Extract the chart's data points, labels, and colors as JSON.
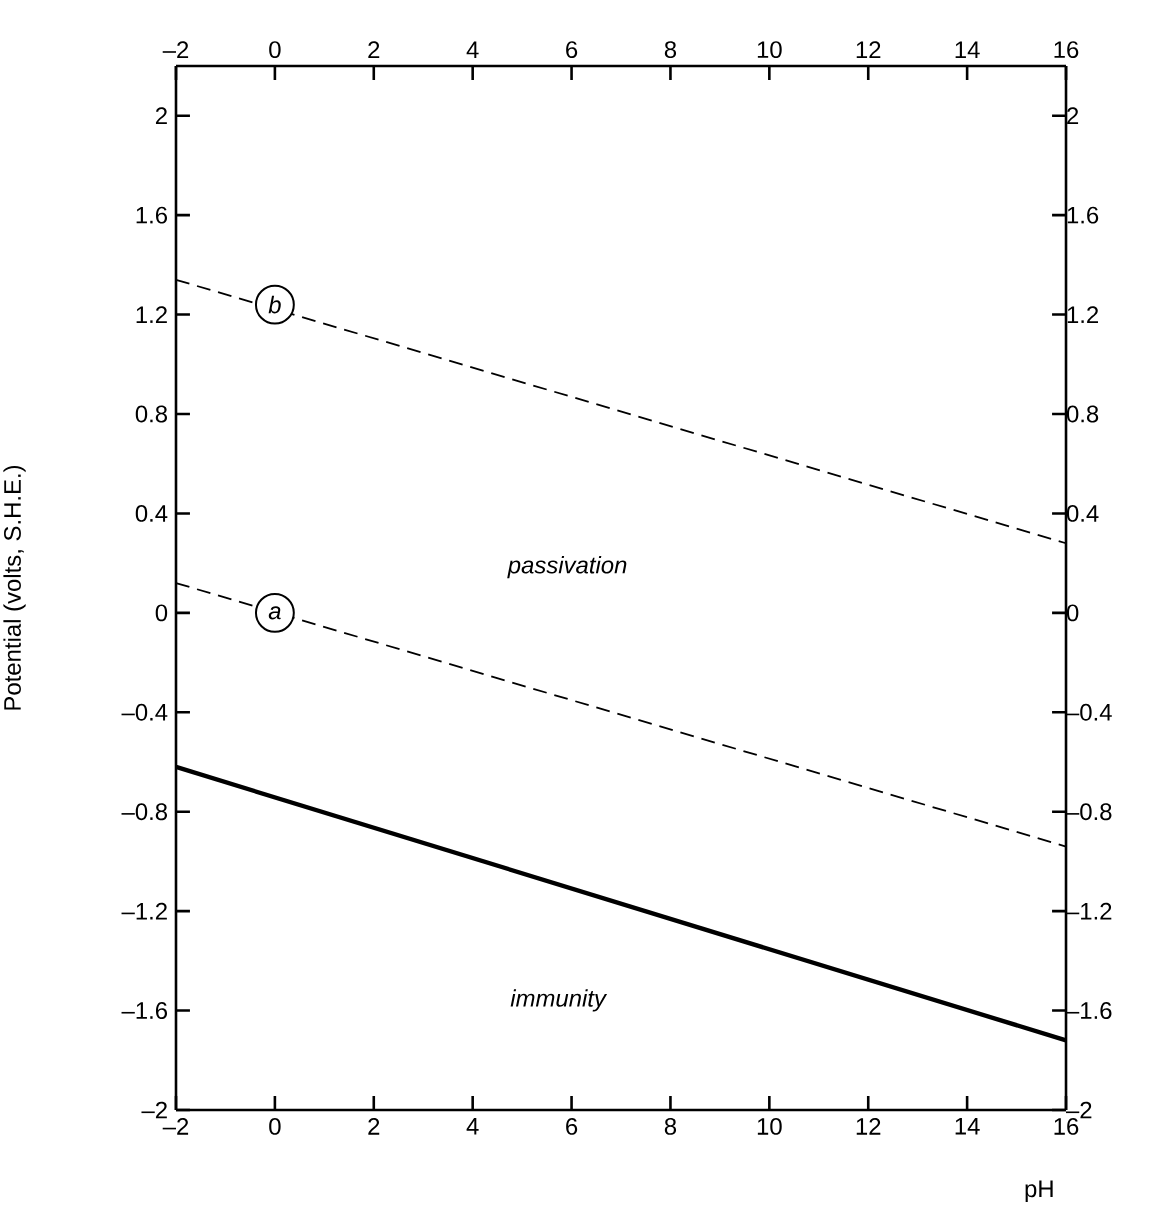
{
  "chart_data": {
    "type": "line",
    "xlabel": "pH",
    "ylabel": "Potential (volts, S.H.E.)",
    "xlim": [
      -2,
      16
    ],
    "ylim": [
      -2,
      2.2
    ],
    "xticks": [
      {
        "value": -2,
        "label": "–2"
      },
      0,
      2,
      4,
      6,
      8,
      10,
      12,
      14,
      16
    ],
    "yticks": [
      {
        "value": -2,
        "label": "–2"
      },
      {
        "value": -1.6,
        "label": "–1.6"
      },
      {
        "value": -1.2,
        "label": "–1.2"
      },
      {
        "value": -0.8,
        "label": "–0.8"
      },
      {
        "value": -0.4,
        "label": "–0.4"
      },
      0,
      0.4,
      0.8,
      1.2,
      1.6,
      2
    ],
    "x2lim": [
      -2,
      16
    ],
    "x2ticks": [
      {
        "value": -2,
        "label": "–2"
      },
      0,
      2,
      4,
      6,
      8,
      10,
      12,
      14,
      16
    ],
    "y2lim": [
      -2,
      2.2
    ],
    "y2ticks": [
      {
        "value": -2,
        "label": "–2"
      },
      {
        "value": -1.6,
        "label": "–1.6"
      },
      {
        "value": -1.2,
        "label": "–1.2"
      },
      {
        "value": -0.8,
        "label": "–0.8"
      },
      {
        "value": -0.4,
        "label": "–0.4"
      },
      0,
      0.4,
      0.8,
      1.2,
      1.6,
      2
    ],
    "x": [
      -2,
      16
    ],
    "series": [
      {
        "color": "#000000",
        "line_style": "solid",
        "values": [
          -0.62,
          -1.72
        ]
      },
      {
        "color": "#000000",
        "line_style": "dashed",
        "values": [
          0.12,
          -0.94
        ]
      },
      {
        "color": "#000000",
        "line_style": "dashed",
        "values": [
          1.34,
          0.28
        ]
      }
    ],
    "annotations": [
      {
        "text": "*a*",
        "x": 0,
        "y": 0
      },
      {
        "text": "*b*",
        "x": 0,
        "y": 1.24
      },
      "*passivation*",
      "*immunity*"
    ]
  }
}
